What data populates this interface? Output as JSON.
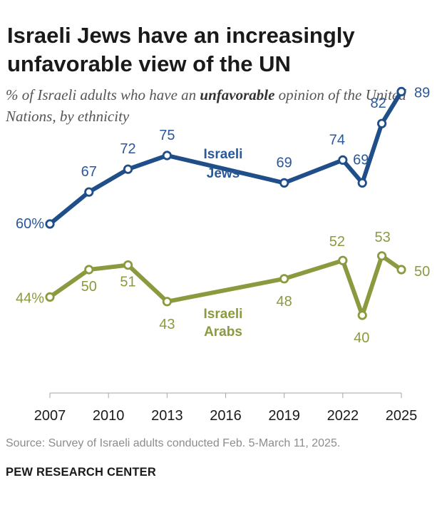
{
  "title": "Israeli Jews have an increasingly unfavorable view of the UN",
  "subtitle": {
    "prefix": "% of Israeli adults who have an ",
    "emphasis": "unfavorable",
    "suffix": " opinion of the United Nations, by ethnicity"
  },
  "chart_data": {
    "type": "line",
    "title": "Israeli Jews have an increasingly unfavorable view of the UN",
    "xlabel": "",
    "ylabel": "",
    "grid": false,
    "xlim": [
      2007,
      2025
    ],
    "ylim": [
      0,
      100
    ],
    "x_ticks": [
      2007,
      2010,
      2013,
      2016,
      2019,
      2022,
      2025
    ],
    "x_tick_labels": [
      "2007",
      "2010",
      "2013",
      "2016",
      "2019",
      "2022",
      "2025"
    ],
    "series": [
      {
        "name": "Israeli Jews",
        "label_lines": [
          "Israeli",
          "Jews"
        ],
        "color": "#1f4e89",
        "label_color": "#2a5898",
        "x": [
          2007,
          2009,
          2011,
          2013,
          2019,
          2022,
          2023,
          2024,
          2025
        ],
        "values": [
          60,
          67,
          72,
          75,
          69,
          74,
          69,
          82,
          89
        ],
        "value_labels": [
          "60%",
          "67",
          "72",
          "75",
          "69",
          "74",
          "69",
          "82",
          "89"
        ]
      },
      {
        "name": "Israeli Arabs",
        "label_lines": [
          "Israeli",
          "Arabs"
        ],
        "color": "#8b9a3f",
        "label_color": "#8b9a3f",
        "x": [
          2007,
          2009,
          2011,
          2013,
          2019,
          2022,
          2023,
          2024,
          2025
        ],
        "values": [
          44,
          50,
          51,
          43,
          48,
          52,
          40,
          53,
          50
        ],
        "value_labels": [
          "44%",
          "50",
          "51",
          "43",
          "48",
          "52",
          "40",
          "53",
          "50"
        ]
      }
    ]
  },
  "source": "Source: Survey of Israeli adults conducted Feb. 5-March 11, 2025.",
  "brand": "PEW RESEARCH CENTER"
}
